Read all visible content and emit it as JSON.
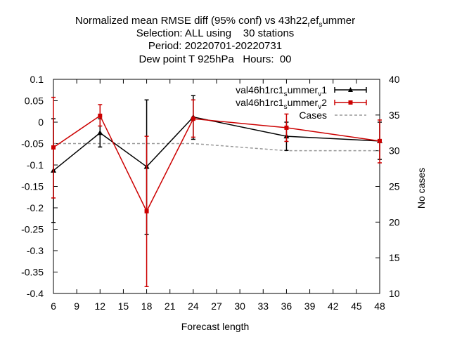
{
  "chart_data": {
    "type": "line",
    "title_lines": [
      "Normalized mean RMSE diff (95% conf) vs 43h22_ref_summer",
      "Selection: ALL using    30 stations",
      "Period: 20220701-20220731",
      "Dew point T 925hPa   Hours:  00"
    ],
    "xlabel": "Forecast length",
    "ylabel": "",
    "y2label": "No cases",
    "xlim": [
      6,
      48
    ],
    "ylim": [
      -0.4,
      0.1
    ],
    "y2lim": [
      10,
      40
    ],
    "x_ticks": [
      6,
      9,
      12,
      15,
      18,
      21,
      24,
      27,
      30,
      33,
      36,
      39,
      42,
      45,
      48
    ],
    "y_ticks": [
      -0.4,
      -0.35,
      -0.3,
      -0.25,
      -0.2,
      -0.15,
      -0.1,
      -0.05,
      0,
      0.05,
      0.1
    ],
    "y_tick_labels": [
      "-0.4",
      "-0.35",
      "-0.3",
      "-0.25",
      "-0.2",
      "-0.15",
      "-0.1",
      "-0.05",
      "0",
      "0.05",
      "0.1"
    ],
    "y2_ticks": [
      10,
      15,
      20,
      25,
      30,
      35,
      40
    ],
    "grid": false,
    "legend_position": "top-right",
    "series": [
      {
        "name": "val46h1rc1_summer_v1",
        "color": "#000000",
        "marker": "triangle",
        "x": [
          6,
          12,
          18,
          24,
          36,
          48
        ],
        "y": [
          -0.113,
          -0.025,
          -0.104,
          0.012,
          -0.033,
          -0.044
        ],
        "err_low": [
          -0.234,
          -0.058,
          -0.262,
          -0.04,
          -0.066,
          -0.087
        ],
        "err_high": [
          0.008,
          0.008,
          0.052,
          0.062,
          0.0,
          0.0
        ]
      },
      {
        "name": "val46h1rc1_summer_v2",
        "color": "#cc0000",
        "marker": "square",
        "x": [
          6,
          12,
          18,
          24,
          36,
          48
        ],
        "y": [
          -0.059,
          0.015,
          -0.208,
          0.008,
          -0.013,
          -0.044
        ],
        "err_low": [
          -0.177,
          -0.009,
          -0.384,
          -0.035,
          -0.045,
          -0.095
        ],
        "err_high": [
          0.058,
          0.041,
          -0.033,
          0.052,
          0.019,
          0.005
        ]
      },
      {
        "name": "Cases",
        "color": "#999999",
        "dashed": true,
        "axis": "y2",
        "x": [
          6,
          12,
          18,
          24,
          36,
          48
        ],
        "y": [
          31,
          31,
          31,
          31,
          30,
          30
        ]
      }
    ],
    "legend_entries": [
      {
        "base": "val46h1rc1",
        "sub": "s",
        "mid": "ummer",
        "sub2": "v",
        "end": "1"
      },
      {
        "base": "val46h1rc1",
        "sub": "s",
        "mid": "ummer",
        "sub2": "v",
        "end": "2"
      },
      {
        "base": "Cases"
      }
    ]
  }
}
